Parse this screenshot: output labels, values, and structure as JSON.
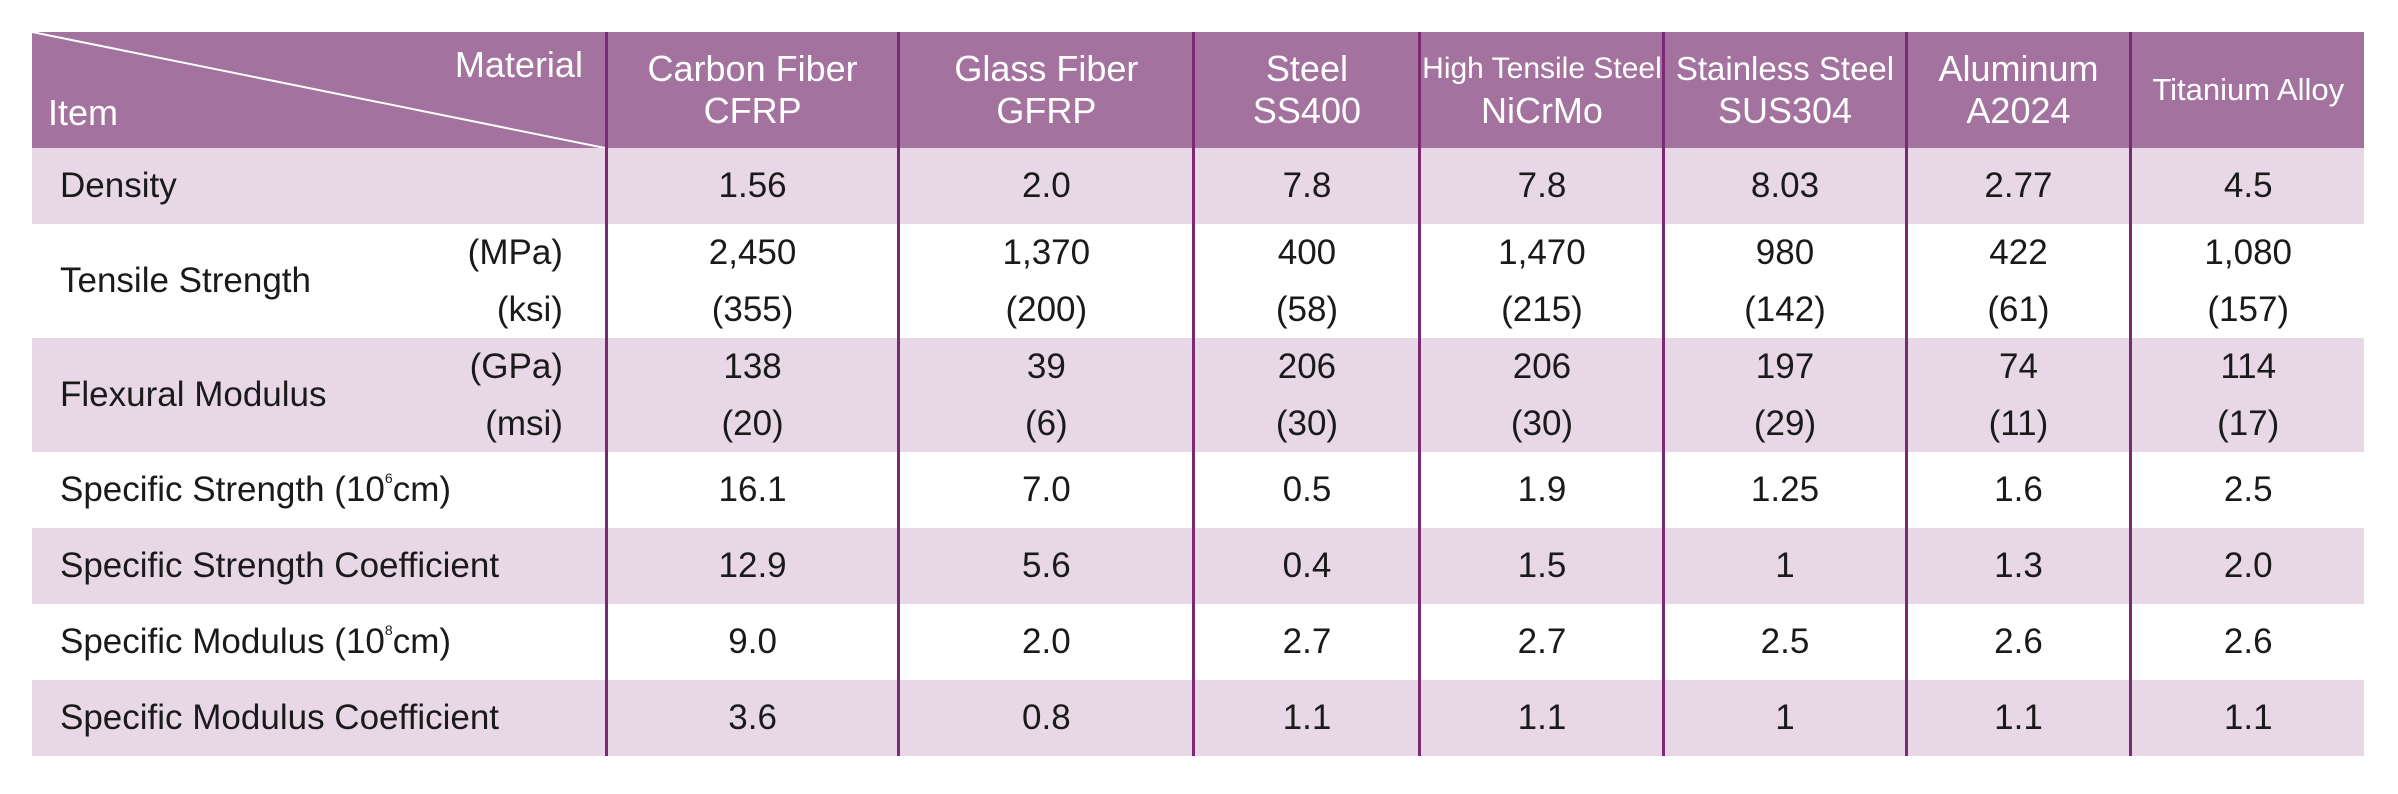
{
  "header": {
    "corner_top": "Material",
    "corner_bottom": "Item",
    "columns": [
      {
        "line1": "Carbon Fiber",
        "line2": "CFRP"
      },
      {
        "line1": "Glass Fiber",
        "line2": "GFRP"
      },
      {
        "line1": "Steel",
        "line2": "SS400"
      },
      {
        "line1": "High Tensile Steel",
        "line2": "NiCrMo"
      },
      {
        "line1": "Stainless Steel",
        "line2": "SUS304"
      },
      {
        "line1": "Aluminum",
        "line2": "A2024"
      },
      {
        "line1": "Titanium Alloy",
        "line2": ""
      }
    ]
  },
  "rows": {
    "density": {
      "label": "Density",
      "values": [
        "1.56",
        "2.0",
        "7.8",
        "7.8",
        "8.03",
        "2.77",
        "4.5"
      ]
    },
    "tensile": {
      "label": "Tensile Strength",
      "unit1": "(MPa)",
      "unit2": "(ksi)",
      "values1": [
        "2,450",
        "1,370",
        "400",
        "1,470",
        "980",
        "422",
        "1,080"
      ],
      "values2": [
        "(355)",
        "(200)",
        "(58)",
        "(215)",
        "(142)",
        "(61)",
        "(157)"
      ]
    },
    "flexural": {
      "label": "Flexural Modulus",
      "unit1": "(GPa)",
      "unit2": "(msi)",
      "values1": [
        "138",
        "39",
        "206",
        "206",
        "197",
        "74",
        "114"
      ],
      "values2": [
        "(20)",
        "(6)",
        "(30)",
        "(30)",
        "(29)",
        "(11)",
        "(17)"
      ]
    },
    "spec_strength": {
      "label_pre": "Specific Strength (10",
      "label_sup": "6",
      "label_post": "cm)",
      "values": [
        "16.1",
        "7.0",
        "0.5",
        "1.9",
        "1.25",
        "1.6",
        "2.5"
      ]
    },
    "spec_strength_coef": {
      "label": "Specific Strength Coefficient",
      "values": [
        "12.9",
        "5.6",
        "0.4",
        "1.5",
        "1",
        "1.3",
        "2.0"
      ]
    },
    "spec_modulus": {
      "label_pre": "Specific Modulus (10",
      "label_sup": "8",
      "label_post": "cm)",
      "values": [
        "9.0",
        "2.0",
        "2.7",
        "2.7",
        "2.5",
        "2.6",
        "2.6"
      ]
    },
    "spec_modulus_coef": {
      "label": "Specific Modulus Coefficient",
      "values": [
        "3.6",
        "0.8",
        "1.1",
        "1.1",
        "1",
        "1.1",
        "1.1"
      ]
    }
  }
}
